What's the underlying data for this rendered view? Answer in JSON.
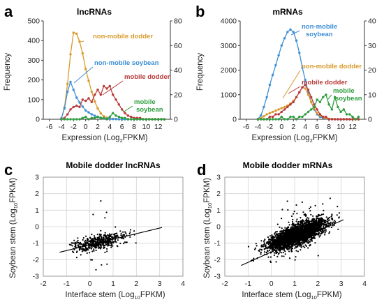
{
  "chart_data": [
    {
      "panel": "a",
      "type": "line",
      "title": "lncRNAs",
      "xlabel": "Expression (Log2FPKM)",
      "ylabel": "Frequency",
      "xlim": [
        -7,
        14
      ],
      "xticks": [
        -6,
        -4,
        -2,
        0,
        2,
        4,
        6,
        8,
        10,
        12
      ],
      "ylim_left": [
        0,
        500
      ],
      "yticks_left": [
        0,
        100,
        200,
        300,
        400,
        500
      ],
      "ylim_right": [
        0,
        80
      ],
      "yticks_right": [
        0,
        20,
        40,
        60,
        80
      ],
      "series": [
        {
          "name": "non-mobile dodder",
          "axis": "left",
          "color": "#d99a2a",
          "x": [
            -4,
            -3.5,
            -3,
            -2.5,
            -2,
            -1.5,
            -1,
            -0.5,
            0,
            0.5,
            1,
            1.5,
            2,
            2.5,
            3,
            3.5,
            4,
            4.5,
            5,
            5.5,
            6,
            6.5,
            7,
            7.5,
            8,
            8.5,
            9,
            9.5,
            10,
            10.5,
            11,
            11.5,
            12,
            12.5,
            13
          ],
          "y": [
            5,
            60,
            180,
            330,
            440,
            435,
            395,
            335,
            255,
            195,
            140,
            90,
            55,
            30,
            15,
            8,
            4,
            2,
            1,
            0,
            0,
            0,
            0,
            0,
            0,
            0,
            0,
            0,
            0,
            0,
            0,
            0,
            0,
            0,
            0
          ]
        },
        {
          "name": "non-mobile soybean",
          "axis": "left",
          "color": "#3d8fd6",
          "x": [
            -4,
            -3.5,
            -3,
            -2.5,
            -2,
            -1.5,
            -1,
            -0.5,
            0,
            0.5,
            1,
            1.5,
            2,
            2.5,
            3,
            3.5,
            4,
            4.5,
            5,
            5.5,
            6,
            6.5,
            7,
            7.5,
            8,
            8.5,
            9,
            9.5,
            10,
            10.5,
            11,
            11.5,
            12,
            12.5,
            13
          ],
          "y": [
            5,
            55,
            140,
            190,
            150,
            110,
            85,
            65,
            45,
            35,
            25,
            18,
            12,
            8,
            5,
            3,
            2,
            1,
            1,
            0,
            0,
            0,
            0,
            0,
            0,
            0,
            0,
            0,
            0,
            0,
            0,
            0,
            0,
            0,
            0
          ]
        },
        {
          "name": "mobile dodder",
          "axis": "right",
          "color": "#b83a3a",
          "x": [
            -4,
            -3.5,
            -3,
            -2.5,
            -2,
            -1.5,
            -1,
            -0.5,
            0,
            0.5,
            1,
            1.5,
            2,
            2.5,
            3,
            3.5,
            4,
            4.5,
            5,
            5.5,
            6,
            6.5,
            7,
            7.5,
            8,
            8.5,
            9,
            9.5,
            10,
            10.5,
            11,
            11.5,
            12,
            12.5,
            13
          ],
          "y": [
            0,
            1,
            4,
            8,
            10,
            11,
            10,
            16,
            15,
            17,
            14,
            20,
            24,
            20,
            27,
            25,
            27,
            20,
            16,
            12,
            8,
            5,
            3,
            2,
            1,
            1,
            1,
            0,
            0,
            0,
            0,
            0,
            0,
            0,
            0
          ]
        },
        {
          "name": "mobile soybean",
          "axis": "right",
          "color": "#2f9e3f",
          "x": [
            -4,
            -3.5,
            -3,
            -2.5,
            -2,
            -1.5,
            -1,
            -0.5,
            0,
            0.5,
            1,
            1.5,
            2,
            2.5,
            3,
            3.5,
            4,
            4.5,
            5,
            5.5,
            6,
            6.5,
            7,
            7.5,
            8,
            8.5,
            9,
            9.5,
            10,
            10.5,
            11,
            11.5,
            12,
            12.5,
            13
          ],
          "y": [
            0,
            0,
            0,
            0,
            0,
            0,
            0,
            1,
            2,
            0,
            1,
            1,
            2,
            1,
            1,
            0,
            2,
            5,
            3,
            2,
            1,
            1,
            0,
            0,
            0,
            0,
            0,
            0,
            0,
            0,
            0,
            0,
            0,
            0,
            0
          ]
        }
      ],
      "annotations": [
        {
          "text": "non-mobile dodder",
          "color": "#d99a2a"
        },
        {
          "text": "non-mobile soybean",
          "color": "#3d8fd6"
        },
        {
          "text": "mobile dodder",
          "color": "#b83a3a"
        },
        {
          "text": "mobile",
          "text2": "soybean",
          "color": "#2f9e3f"
        }
      ]
    },
    {
      "panel": "b",
      "type": "line",
      "title": "mRNAs",
      "xlabel": "Expression (Log2FPKM)",
      "ylabel": "Frequency",
      "xlim": [
        -7,
        14
      ],
      "xticks": [
        -6,
        -4,
        -2,
        0,
        2,
        4,
        6,
        8,
        10,
        12
      ],
      "ylim_left": [
        0,
        4000
      ],
      "yticks_left": [
        0,
        1000,
        2000,
        3000,
        4000
      ],
      "ylim_right": [
        0,
        40
      ],
      "yticks_right": [
        0,
        10,
        20,
        30,
        40
      ],
      "series": [
        {
          "name": "non-mobile soybean",
          "axis": "left",
          "color": "#3d8fd6",
          "x": [
            -4,
            -3.5,
            -3,
            -2.5,
            -2,
            -1.5,
            -1,
            -0.5,
            0,
            0.5,
            1,
            1.5,
            2,
            2.5,
            3,
            3.5,
            4,
            4.5,
            5,
            5.5,
            6,
            6.5,
            7,
            7.5,
            8,
            8.5,
            9,
            9.5,
            10,
            10.5,
            11,
            11.5,
            12,
            12.5,
            13
          ],
          "y": [
            10,
            150,
            500,
            900,
            1400,
            1800,
            2200,
            2600,
            3000,
            3300,
            3550,
            3650,
            3550,
            3200,
            2700,
            2100,
            1600,
            1100,
            700,
            400,
            200,
            100,
            50,
            20,
            10,
            5,
            2,
            1,
            0,
            0,
            0,
            0,
            0,
            0,
            0
          ]
        },
        {
          "name": "non-mobile dodder",
          "axis": "left",
          "color": "#d99a2a",
          "x": [
            -4,
            -3.5,
            -3,
            -2.5,
            -2,
            -1.5,
            -1,
            -0.5,
            0,
            0.5,
            1,
            1.5,
            2,
            2.5,
            3,
            3.5,
            4,
            4.5,
            5,
            5.5,
            6,
            6.5,
            7,
            7.5,
            8,
            8.5,
            9,
            9.5,
            10,
            10.5,
            11,
            11.5,
            12,
            12.5,
            13
          ],
          "y": [
            5,
            40,
            120,
            200,
            250,
            300,
            350,
            400,
            450,
            500,
            560,
            640,
            750,
            900,
            1100,
            1300,
            1250,
            1000,
            700,
            450,
            250,
            150,
            80,
            40,
            20,
            10,
            5,
            2,
            0,
            0,
            0,
            0,
            0,
            0,
            0
          ]
        },
        {
          "name": "mobile dodder",
          "axis": "right",
          "color": "#b83a3a",
          "x": [
            -4,
            -3.5,
            -3,
            -2.5,
            -2,
            -1.5,
            -1,
            -0.5,
            0,
            0.5,
            1,
            1.5,
            2,
            2.5,
            3,
            3.5,
            4,
            4.5,
            5,
            5.5,
            6,
            6.5,
            7,
            7.5,
            8,
            8.5,
            9,
            9.5,
            10,
            10.5,
            11,
            11.5,
            12,
            12.5,
            13
          ],
          "y": [
            0,
            0,
            0,
            0,
            1,
            1,
            2,
            2,
            3,
            4,
            5,
            6,
            7,
            9,
            11,
            13,
            14,
            12,
            9,
            6,
            4,
            2,
            1,
            1,
            0,
            0,
            0,
            0,
            0,
            0,
            0,
            0,
            0,
            0,
            0
          ]
        },
        {
          "name": "mobile soybean",
          "axis": "right",
          "color": "#2f9e3f",
          "x": [
            -4,
            -3.5,
            -3,
            -2.5,
            -2,
            -1.5,
            -1,
            -0.5,
            0,
            0.5,
            1,
            1.5,
            2,
            2.5,
            3,
            3.5,
            4,
            4.5,
            5,
            5.5,
            6,
            6.5,
            7,
            7.5,
            8,
            8.5,
            9,
            9.5,
            10,
            10.5,
            11,
            11.5,
            12,
            12.5,
            13
          ],
          "y": [
            0,
            0,
            0,
            0,
            0,
            0,
            0,
            0,
            1,
            0,
            0,
            1,
            1,
            0,
            1,
            1,
            2,
            3,
            4,
            5,
            8,
            7,
            9,
            10,
            6,
            4,
            9,
            5,
            3,
            4,
            2,
            2,
            1,
            0,
            1
          ]
        }
      ],
      "annotations": [
        {
          "text": "non-mobile",
          "text2": "soybean",
          "color": "#3d8fd6"
        },
        {
          "text": "non-mobile dodder",
          "color": "#d99a2a"
        },
        {
          "text": "mobile dodder",
          "color": "#b83a3a"
        },
        {
          "text": "mobile",
          "text2": "soybean",
          "color": "#2f9e3f"
        }
      ]
    },
    {
      "panel": "c",
      "type": "scatter",
      "title": "Mobile dodder lncRNAs",
      "xlabel": "Interface stem (Log10FPKM)",
      "ylabel": "Soybean stem (Log10FPKM)",
      "xlim": [
        -2,
        4
      ],
      "ylim": [
        -3,
        3
      ],
      "xticks": [
        -2,
        -1,
        0,
        1,
        2,
        3,
        4
      ],
      "yticks": [
        -3,
        -2,
        -1,
        0,
        1,
        2,
        3
      ],
      "grid": true,
      "n_points": 500,
      "seed": 7,
      "regression": {
        "x": [
          -1.3,
          3.1
        ],
        "y": [
          -1.55,
          -0.05
        ]
      },
      "cloud": {
        "x_center": 0.4,
        "x_spread": 0.55,
        "y_intercept": -1.05,
        "y_slope": 0.3,
        "y_spread": 0.22
      }
    },
    {
      "panel": "d",
      "type": "scatter",
      "title": "Mobile dodder mRNAs",
      "xlabel": "Interface stem (Log10FPKM)",
      "ylabel": "Soybean stem (Log10FPKM)",
      "xlim": [
        -2,
        4
      ],
      "ylim": [
        -3,
        3
      ],
      "xticks": [
        -2,
        -1,
        0,
        1,
        2,
        3,
        4
      ],
      "yticks": [
        -3,
        -2,
        -1,
        0,
        1,
        2,
        3
      ],
      "grid": true,
      "n_points": 2800,
      "seed": 11,
      "regression": {
        "x": [
          -1.3,
          3.1
        ],
        "y": [
          -2.35,
          0.42
        ]
      },
      "cloud": {
        "x_center": 1.1,
        "x_spread": 0.6,
        "y_intercept": -1.1,
        "y_slope": 0.55,
        "y_spread": 0.3
      }
    }
  ],
  "labels": {
    "a": "a",
    "b": "b",
    "c": "c",
    "d": "d",
    "expr_prefix": "Expression (Log",
    "expr_sub": "2",
    "expr_suffix": "FPKM)",
    "freq": "Frequency",
    "iface_prefix": "Interface stem (Log",
    "soy_prefix": "Soybean stem (Log",
    "log10_sub": "10",
    "fpkm_suffix": "FPKM)"
  }
}
